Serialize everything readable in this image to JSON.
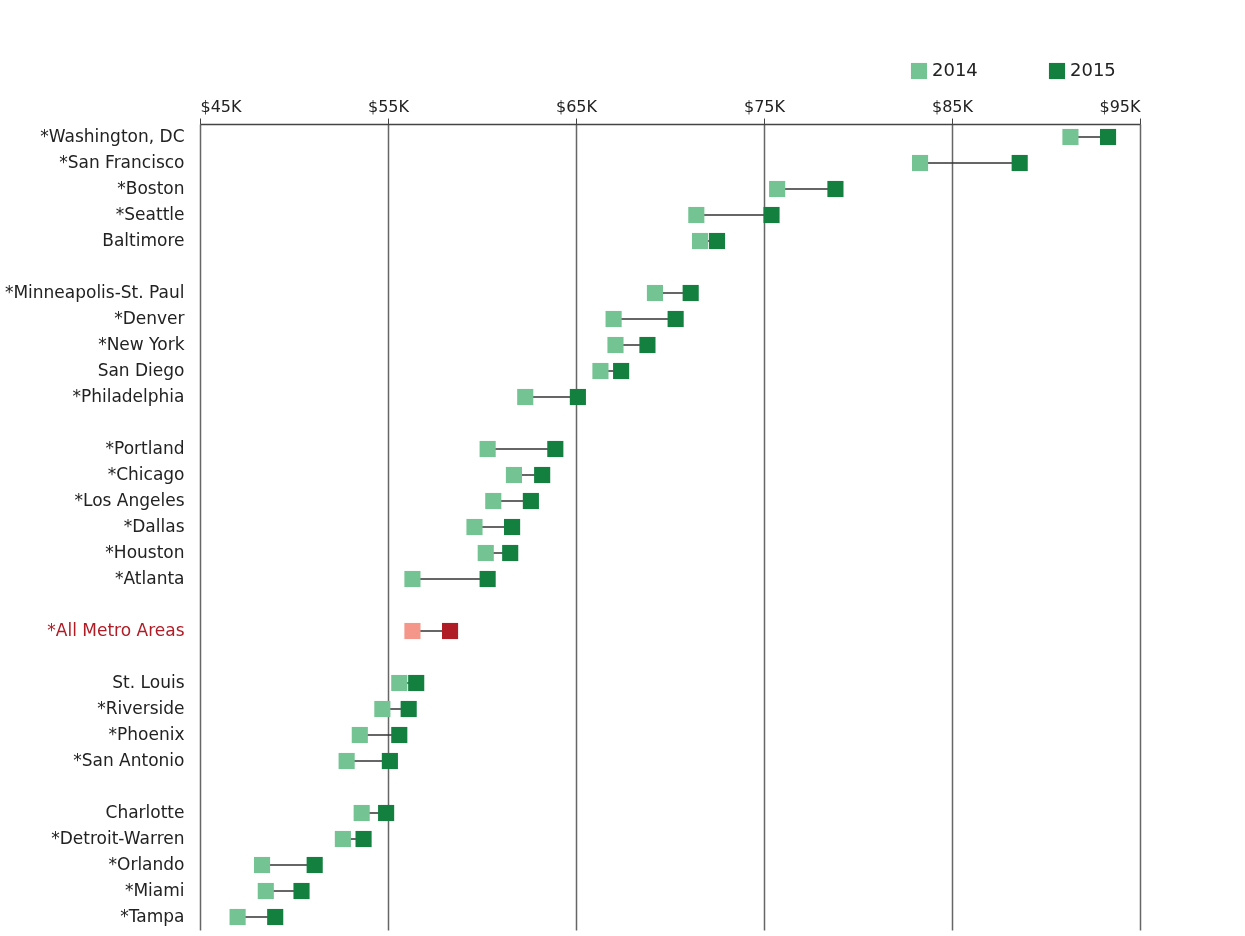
{
  "chart_data": {
    "type": "scatter",
    "orientation": "horizontal",
    "marker": "square",
    "grid": "x",
    "legend": "top right",
    "categories": [
      "*Washington, DC",
      "*San Francisco",
      "*Boston",
      "*Seattle",
      "Baltimore",
      null,
      "*Minneapolis-St. Paul",
      "*Denver",
      "*New York",
      "San Diego",
      "*Philadelphia",
      null,
      "*Portland",
      "*Chicago",
      "*Los Angeles",
      "*Dallas",
      "*Houston",
      "*Atlanta",
      null,
      "*All Metro Areas",
      null,
      "St. Louis",
      "*Riverside",
      "*Phoenix",
      "*San Antonio",
      null,
      "Charlotte",
      "*Detroit-Warren",
      "*Orlando",
      "*Miami",
      "*Tampa"
    ],
    "xlim": [
      45,
      95
    ],
    "xticks": [
      {
        "value": 45,
        "label": "$45K"
      },
      {
        "value": 55,
        "label": "$55K"
      },
      {
        "value": 65,
        "label": "$65K"
      },
      {
        "value": 75,
        "label": "$75K"
      },
      {
        "value": 85,
        "label": "$85K"
      },
      {
        "value": 95,
        "label": "$95K"
      }
    ],
    "series": [
      {
        "name": "2014",
        "color": "#74c493",
        "values": [
          91.3,
          83.3,
          75.7,
          71.4,
          71.6,
          null,
          69.2,
          67.0,
          67.1,
          66.3,
          62.3,
          null,
          60.3,
          61.7,
          60.6,
          59.6,
          60.2,
          56.3,
          null,
          56.3,
          null,
          55.6,
          54.7,
          53.5,
          52.8,
          null,
          53.6,
          52.6,
          48.3,
          48.5,
          47.0
        ],
        "colors": [
          "#74c493",
          "#74c493",
          "#74c493",
          "#74c493",
          "#74c493",
          null,
          "#74c493",
          "#74c493",
          "#74c493",
          "#74c493",
          "#74c493",
          null,
          "#74c493",
          "#74c493",
          "#74c493",
          "#74c493",
          "#74c493",
          "#74c493",
          null,
          "#f4978a",
          null,
          "#74c493",
          "#74c493",
          "#74c493",
          "#74c493",
          null,
          "#74c493",
          "#74c493",
          "#74c493",
          "#74c493",
          "#74c493"
        ]
      },
      {
        "name": "2015",
        "color": "#13803f",
        "values": [
          93.3,
          88.6,
          78.8,
          75.4,
          72.5,
          null,
          71.1,
          70.3,
          68.8,
          67.4,
          65.1,
          null,
          63.9,
          63.2,
          62.6,
          61.6,
          61.5,
          60.3,
          null,
          58.3,
          null,
          56.5,
          56.1,
          55.6,
          55.1,
          null,
          54.9,
          53.7,
          51.1,
          50.4,
          49.0
        ],
        "colors": [
          "#13803f",
          "#13803f",
          "#13803f",
          "#13803f",
          "#13803f",
          null,
          "#13803f",
          "#13803f",
          "#13803f",
          "#13803f",
          "#13803f",
          null,
          "#13803f",
          "#13803f",
          "#13803f",
          "#13803f",
          "#13803f",
          "#13803f",
          null,
          "#b01c26",
          null,
          "#13803f",
          "#13803f",
          "#13803f",
          "#13803f",
          null,
          "#13803f",
          "#13803f",
          "#13803f",
          "#13803f",
          "#13803f"
        ]
      }
    ]
  }
}
